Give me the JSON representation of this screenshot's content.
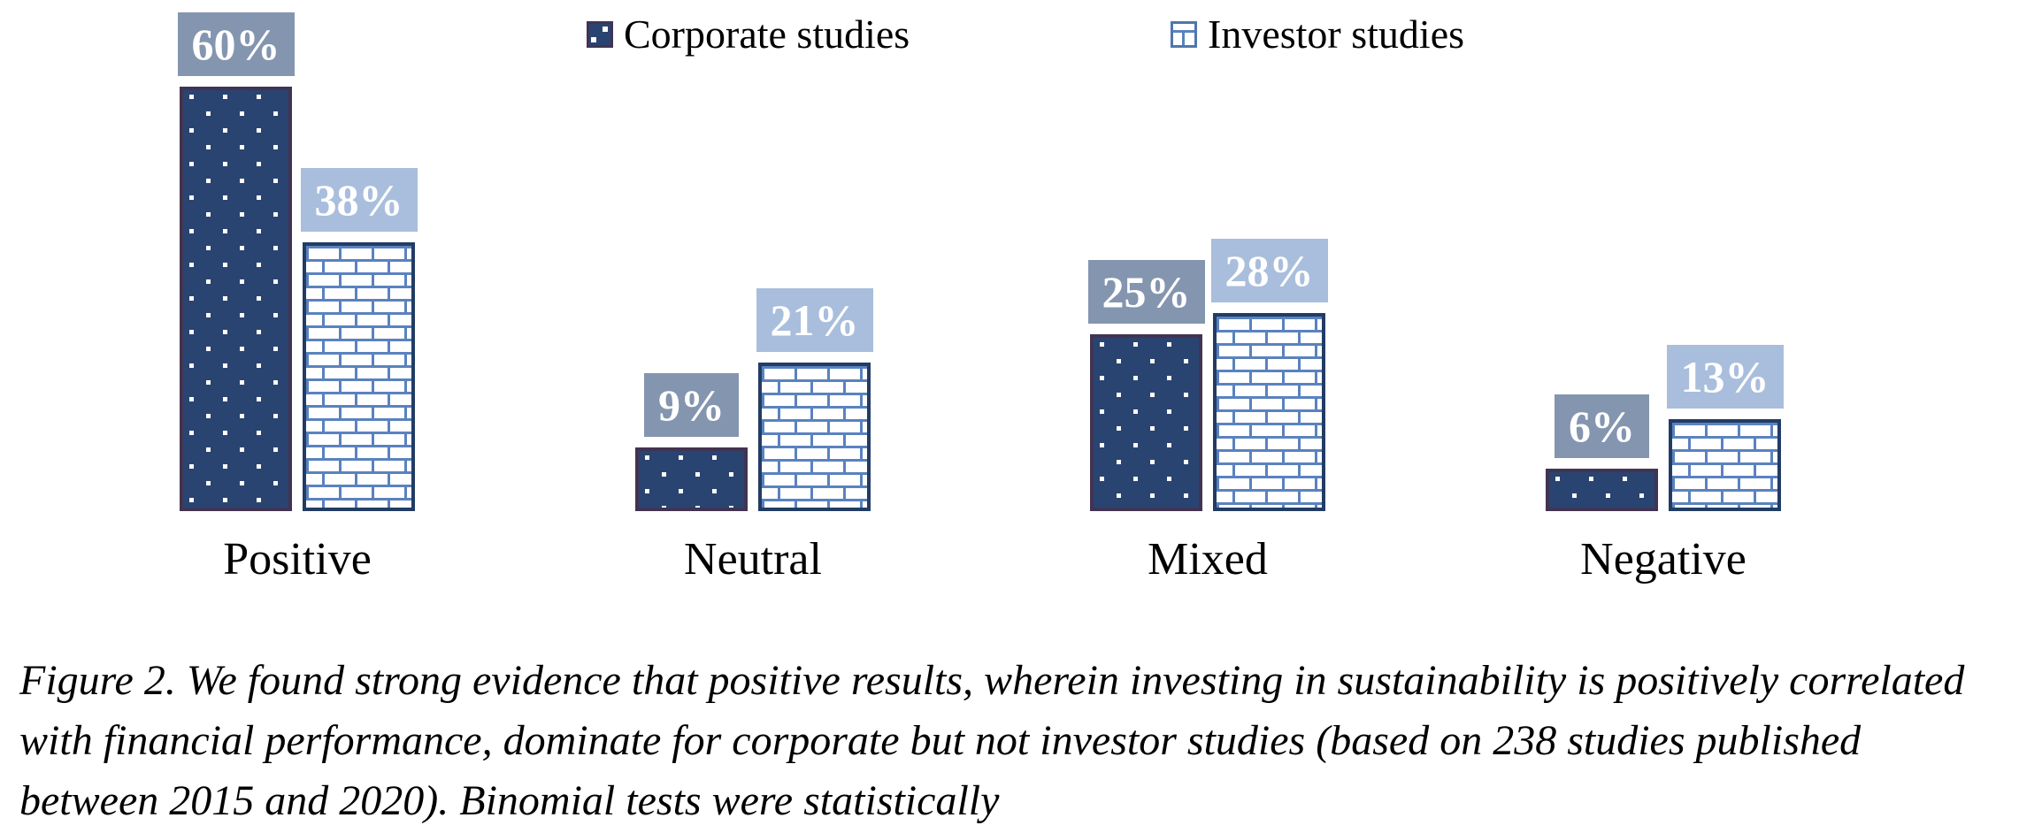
{
  "chart_data": {
    "type": "bar",
    "categories": [
      "Positive",
      "Neutral",
      "Mixed",
      "Negative"
    ],
    "series": [
      {
        "name": "Corporate studies",
        "pattern": "dots",
        "values": [
          60,
          9,
          25,
          6
        ],
        "labels": [
          "60%",
          "9%",
          "25%",
          "6%"
        ]
      },
      {
        "name": "Investor studies",
        "pattern": "bricks",
        "values": [
          38,
          21,
          28,
          13
        ],
        "labels": [
          "38%",
          "21%",
          "28%",
          "13%"
        ]
      }
    ],
    "unit": "%",
    "ylim": [
      0,
      65
    ],
    "legend_position": "top",
    "grid": false,
    "axes_visible": false
  },
  "caption": {
    "text": "Figure 2. We found strong evidence that positive results, wherein investing in sustainability is positively correlated with financial performance, dominate for corporate but not investor studies (based on 238 studies published between 2015 and 2020). Binomial tests were statistically"
  },
  "colors": {
    "corporate_bar_fill": "#2A4471",
    "corporate_bar_border": "#413452",
    "corporate_label_bg": "#8495AF",
    "investor_brick_line": "#5A82BF",
    "investor_bar_border": "#223C64",
    "investor_label_bg": "#A9BEDC",
    "value_label_text": "#FFFFFF",
    "text": "#000000",
    "background": "#FFFFFF"
  }
}
